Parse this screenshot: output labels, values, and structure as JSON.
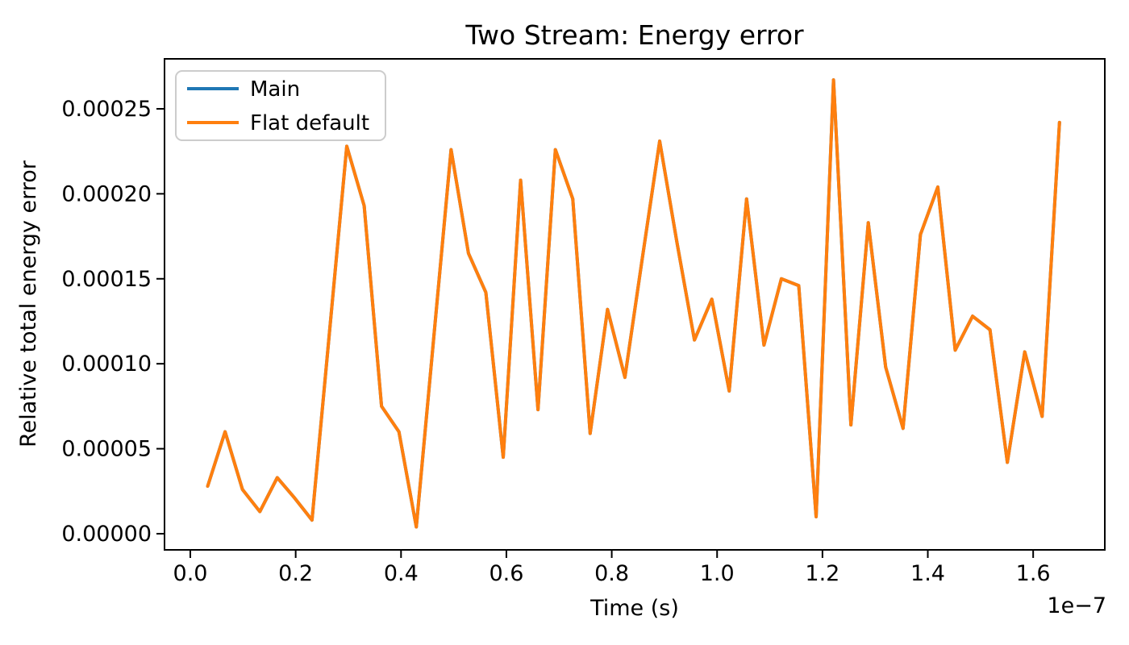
{
  "figure": {
    "title": "Two Stream: Energy error",
    "background_color": "#ffffff",
    "spine_color": "#000000"
  },
  "chart_data": {
    "type": "line",
    "title": "Two Stream: Energy error",
    "xlabel": "Time (s)",
    "ylabel": "Relative total energy error",
    "x_offset_label": "1e−7",
    "x_unit_scale": "x values are in units of 1e-7 seconds",
    "grid": false,
    "legend_position": "upper left",
    "xlim": [
      -0.049,
      1.736
    ],
    "ylim": [
      -9.5e-06,
      0.0002794
    ],
    "x_ticks": {
      "values": [
        0.0,
        0.2,
        0.4,
        0.6,
        0.8,
        1.0,
        1.2,
        1.4,
        1.6
      ],
      "labels": [
        "0.0",
        "0.2",
        "0.4",
        "0.6",
        "0.8",
        "1.0",
        "1.2",
        "1.4",
        "1.6"
      ]
    },
    "y_ticks": {
      "values": [
        0.0,
        5e-05,
        0.0001,
        0.00015,
        0.0002,
        0.00025
      ],
      "labels": [
        "0.00000",
        "0.00005",
        "0.00010",
        "0.00015",
        "0.00020",
        "0.00025"
      ]
    },
    "x": [
      0.033,
      0.066,
      0.099,
      0.132,
      0.165,
      0.198,
      0.231,
      0.264,
      0.297,
      0.33,
      0.363,
      0.396,
      0.429,
      0.462,
      0.495,
      0.528,
      0.561,
      0.594,
      0.627,
      0.66,
      0.693,
      0.726,
      0.759,
      0.792,
      0.825,
      0.858,
      0.891,
      0.924,
      0.957,
      0.99,
      1.023,
      1.056,
      1.089,
      1.122,
      1.155,
      1.188,
      1.221,
      1.254,
      1.287,
      1.32,
      1.353,
      1.386,
      1.419,
      1.452,
      1.485,
      1.518,
      1.551,
      1.584,
      1.617,
      1.65
    ],
    "series": [
      {
        "name": "Main",
        "color": "#1f77b4",
        "values": [
          2.8e-05,
          6e-05,
          2.6e-05,
          1.3e-05,
          3.3e-05,
          2.1e-05,
          8e-06,
          0.000118,
          0.000228,
          0.000193,
          7.5e-05,
          6e-05,
          4e-06,
          0.000115,
          0.000226,
          0.000165,
          0.000142,
          4.5e-05,
          0.000208,
          7.3e-05,
          0.000226,
          0.000197,
          5.9e-05,
          0.000132,
          9.2e-05,
          0.000162,
          0.000231,
          0.000171,
          0.000114,
          0.000138,
          8.4e-05,
          0.000197,
          0.000111,
          0.00015,
          0.000146,
          1e-05,
          0.000267,
          6.4e-05,
          0.000183,
          9.8e-05,
          6.2e-05,
          0.000176,
          0.000204,
          0.000108,
          0.000128,
          0.00012,
          4.2e-05,
          0.000107,
          6.9e-05,
          0.000242
        ]
      },
      {
        "name": "Flat default",
        "color": "#ff7f0e",
        "values": [
          2.8e-05,
          6e-05,
          2.6e-05,
          1.3e-05,
          3.3e-05,
          2.1e-05,
          8e-06,
          0.000118,
          0.000228,
          0.000193,
          7.5e-05,
          6e-05,
          4e-06,
          0.000115,
          0.000226,
          0.000165,
          0.000142,
          4.5e-05,
          0.000208,
          7.3e-05,
          0.000226,
          0.000197,
          5.9e-05,
          0.000132,
          9.2e-05,
          0.000162,
          0.000231,
          0.000171,
          0.000114,
          0.000138,
          8.4e-05,
          0.000197,
          0.000111,
          0.00015,
          0.000146,
          1e-05,
          0.000267,
          6.4e-05,
          0.000183,
          9.8e-05,
          6.2e-05,
          0.000176,
          0.000204,
          0.000108,
          0.000128,
          0.00012,
          4.2e-05,
          0.000107,
          6.9e-05,
          0.000242
        ]
      }
    ],
    "note_overlap": "Main line is exactly covered by Flat default line"
  }
}
